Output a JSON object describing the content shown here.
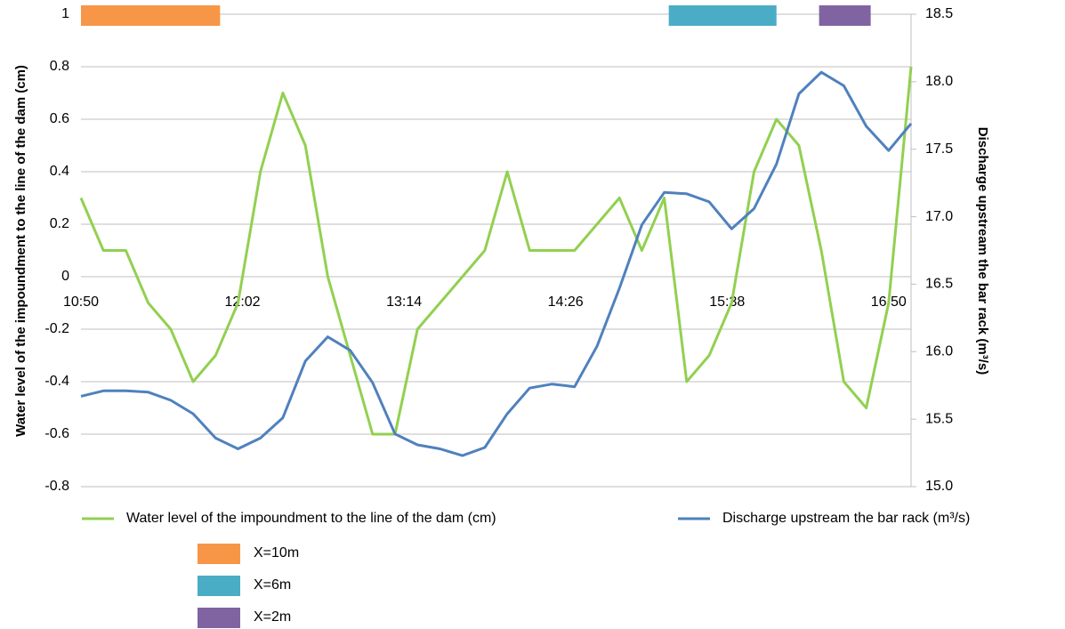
{
  "chart_data": {
    "type": "line",
    "y_label": "Water level of the impoundment to the line of the dam (cm)",
    "y2_label": "Discharge upstream the bar rack (m³/s)",
    "x": [
      "10:50",
      "11:00",
      "11:10",
      "11:20",
      "11:30",
      "11:40",
      "11:50",
      "12:00",
      "12:10",
      "12:20",
      "12:30",
      "12:40",
      "12:50",
      "13:00",
      "13:10",
      "13:20",
      "13:30",
      "13:40",
      "13:50",
      "14:00",
      "14:10",
      "14:20",
      "14:30",
      "14:40",
      "14:50",
      "15:00",
      "15:10",
      "15:20",
      "15:30",
      "15:40",
      "15:50",
      "16:00",
      "16:10",
      "16:20",
      "16:30",
      "16:40",
      "16:50",
      "17:00"
    ],
    "xlim": [
      "10:50",
      "17:00"
    ],
    "xticks": [
      "10:50",
      "12:02",
      "13:14",
      "14:26",
      "15:38",
      "16:50"
    ],
    "ylim": [
      -0.8,
      1
    ],
    "yticks": [
      -0.8,
      -0.6,
      -0.4,
      -0.2,
      0,
      0.2,
      0.4,
      0.6,
      0.8,
      1
    ],
    "y2lim": [
      15,
      18.5
    ],
    "y2ticks": [
      {
        "value": 15,
        "label": "15.0"
      },
      15.5,
      {
        "value": 16,
        "label": "16.0"
      },
      16.5,
      {
        "value": 17,
        "label": "17.0"
      },
      17.5,
      {
        "value": 18,
        "label": "18.0"
      },
      18.5
    ],
    "grid": true,
    "series": [
      {
        "name": "Water level of the impoundment to the line of the dam (cm)",
        "color": "#92d050",
        "values": [
          0.3,
          0.1,
          0.1,
          -0.1,
          -0.2,
          -0.4,
          -0.3,
          -0.1,
          0.4,
          0.7,
          0.5,
          0.0,
          -0.3,
          -0.6,
          -0.6,
          -0.2,
          -0.1,
          0.0,
          0.1,
          0.4,
          0.1,
          0.1,
          0.1,
          0.2,
          0.3,
          0.1,
          0.3,
          -0.4,
          -0.3,
          -0.1,
          0.4,
          0.6,
          0.5,
          0.1,
          -0.4,
          -0.5,
          -0.1,
          0.8
        ]
      },
      {
        "name": "Discharge upstream the bar rack (m³/s)",
        "color": "#4f81bd",
        "axis": "y2",
        "values": [
          15.67,
          15.71,
          15.71,
          15.7,
          15.64,
          15.54,
          15.36,
          15.28,
          15.36,
          15.51,
          15.93,
          16.11,
          16.01,
          15.77,
          15.39,
          15.31,
          15.28,
          15.23,
          15.29,
          15.54,
          15.73,
          15.76,
          15.74,
          16.04,
          16.47,
          16.94,
          17.18,
          17.17,
          17.11,
          16.91,
          17.06,
          17.39,
          17.91,
          18.07,
          17.97,
          17.67,
          17.49,
          17.69
        ]
      }
    ],
    "periods": [
      {
        "name": "X=10m",
        "color": "#f79646",
        "start": "10:50",
        "end": "11:52"
      },
      {
        "name": "X=6m",
        "color": "#4bacc6",
        "start": "15:12",
        "end": "16:00"
      },
      {
        "name": "X=2m",
        "color": "#8064a2",
        "start": "16:19",
        "end": "16:42"
      }
    ]
  }
}
